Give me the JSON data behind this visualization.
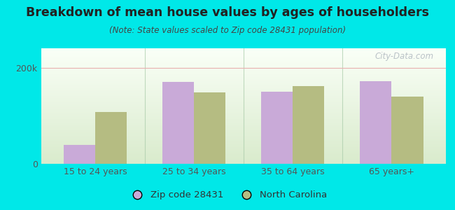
{
  "title": "Breakdown of mean house values by ages of householders",
  "subtitle": "(Note: State values scaled to Zip code 28431 population)",
  "categories": [
    "15 to 24 years",
    "25 to 34 years",
    "35 to 64 years",
    "65 years+"
  ],
  "zip_values": [
    40000,
    170000,
    150000,
    172000
  ],
  "nc_values": [
    108000,
    148000,
    162000,
    140000
  ],
  "zip_color": "#c9aad8",
  "nc_color": "#b5bc82",
  "background_outer": "#00e8e8",
  "ylim": [
    0,
    240000
  ],
  "ytick_labels": [
    "0",
    "200k"
  ],
  "ytick_vals": [
    0,
    200000
  ],
  "legend_zip": "Zip code 28431",
  "legend_nc": "North Carolina",
  "bar_width": 0.32,
  "watermark": "City-Data.com",
  "title_color": "#222222",
  "subtitle_color": "#444444",
  "tick_color": "#555555",
  "gridline_color": "#e8b0b0",
  "separator_color": "#aaccaa"
}
